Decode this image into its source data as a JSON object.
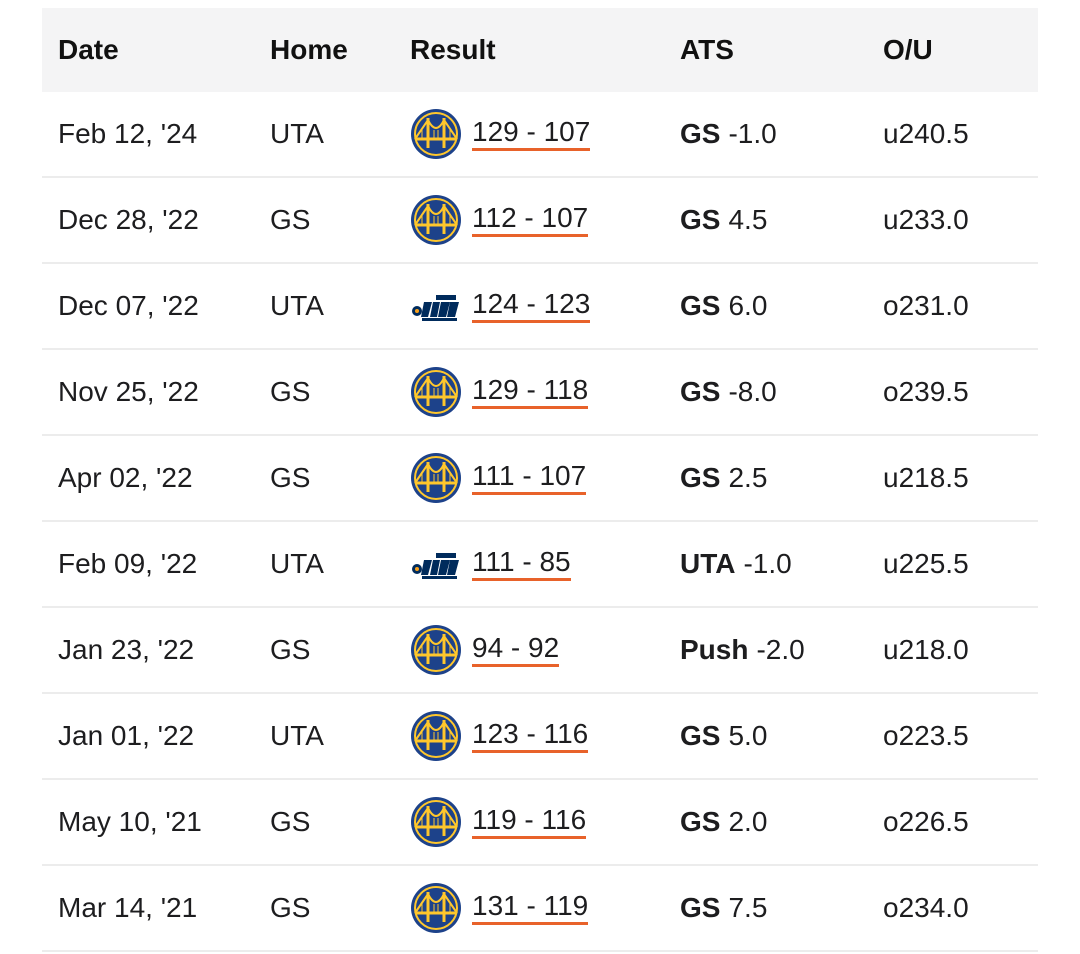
{
  "columns": {
    "date": "Date",
    "home": "Home",
    "result": "Result",
    "ats": "ATS",
    "ou": "O/U"
  },
  "colors": {
    "underline": "#e8622a",
    "warriors_blue": "#1d428a",
    "warriors_gold": "#ffc72c",
    "jazz_navy": "#002b5c"
  },
  "rows": [
    {
      "date": "Feb 12, '24",
      "home": "UTA",
      "logo": "warriors-logo",
      "result": "129 - 107",
      "ats_team": "GS",
      "ats_line": "-1.0",
      "ou": "u240.5"
    },
    {
      "date": "Dec 28, '22",
      "home": "GS",
      "logo": "warriors-logo",
      "result": "112 - 107",
      "ats_team": "GS",
      "ats_line": "4.5",
      "ou": "u233.0"
    },
    {
      "date": "Dec 07, '22",
      "home": "UTA",
      "logo": "jazz-logo",
      "result": "124 - 123",
      "ats_team": "GS",
      "ats_line": "6.0",
      "ou": "o231.0"
    },
    {
      "date": "Nov 25, '22",
      "home": "GS",
      "logo": "warriors-logo",
      "result": "129 - 118",
      "ats_team": "GS",
      "ats_line": "-8.0",
      "ou": "o239.5"
    },
    {
      "date": "Apr 02, '22",
      "home": "GS",
      "logo": "warriors-logo",
      "result": "111 - 107",
      "ats_team": "GS",
      "ats_line": "2.5",
      "ou": "u218.5"
    },
    {
      "date": "Feb 09, '22",
      "home": "UTA",
      "logo": "jazz-logo",
      "result": "111 - 85",
      "ats_team": "UTA",
      "ats_line": "-1.0",
      "ou": "u225.5"
    },
    {
      "date": "Jan 23, '22",
      "home": "GS",
      "logo": "warriors-logo",
      "result": "94 - 92",
      "ats_team": "Push",
      "ats_line": "-2.0",
      "ou": "u218.0"
    },
    {
      "date": "Jan 01, '22",
      "home": "UTA",
      "logo": "warriors-logo",
      "result": "123 - 116",
      "ats_team": "GS",
      "ats_line": "5.0",
      "ou": "o223.5"
    },
    {
      "date": "May 10, '21",
      "home": "GS",
      "logo": "warriors-logo",
      "result": "119 - 116",
      "ats_team": "GS",
      "ats_line": "2.0",
      "ou": "o226.5"
    },
    {
      "date": "Mar 14, '21",
      "home": "GS",
      "logo": "warriors-logo",
      "result": "131 - 119",
      "ats_team": "GS",
      "ats_line": "7.5",
      "ou": "o234.0"
    }
  ]
}
